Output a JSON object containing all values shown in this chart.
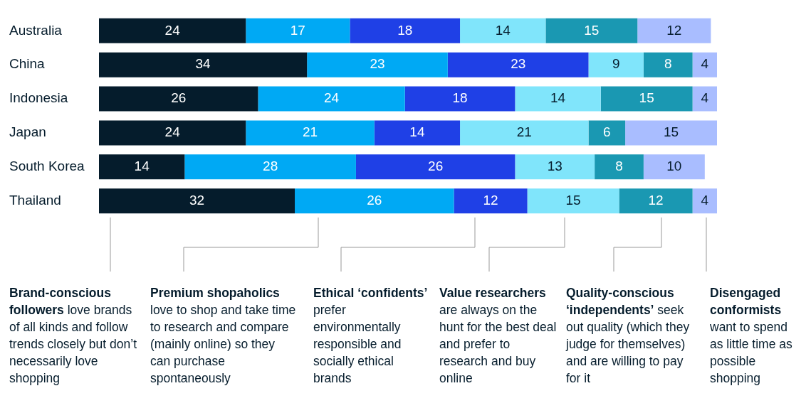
{
  "chart_data": {
    "type": "bar",
    "orientation": "horizontal",
    "stacked": true,
    "data_labels": true,
    "legend": "bottom",
    "categories": [
      "Australia",
      "China",
      "Indonesia",
      "Japan",
      "South Korea",
      "Thailand"
    ],
    "series": [
      {
        "name": "Brand-conscious followers",
        "color": "#051c2c",
        "values": [
          24,
          34,
          26,
          24,
          14,
          32
        ]
      },
      {
        "name": "Premium shopaholics",
        "color": "#00a9f4",
        "values": [
          17,
          23,
          24,
          21,
          28,
          26
        ]
      },
      {
        "name": "Ethical ‘confidents’",
        "color": "#1f40e6",
        "values": [
          18,
          23,
          18,
          14,
          26,
          12
        ]
      },
      {
        "name": "Value researchers",
        "color": "#80e5fb",
        "values": [
          14,
          9,
          14,
          21,
          13,
          15
        ]
      },
      {
        "name": "Quality-conscious ‘independents’",
        "color": "#1a98b2",
        "values": [
          15,
          8,
          15,
          6,
          8,
          12
        ]
      },
      {
        "name": "Disengaged conformists",
        "color": "#a9bdff",
        "values": [
          12,
          4,
          4,
          15,
          10,
          4
        ]
      }
    ],
    "annotations": [
      "love brands of all kinds and follow trends closely but don’t necessarily love shopping",
      "love to shop and take time to research and compare (mainly online) so they can purchase spontaneously",
      "prefer environmentally responsible and socially ethical brands",
      "are always on the hunt for the best deal and prefer to research and buy online",
      "seek out quality (which they judge for themselves) and are willing to pay for it",
      "want to spend as little time as possible shopping"
    ]
  }
}
